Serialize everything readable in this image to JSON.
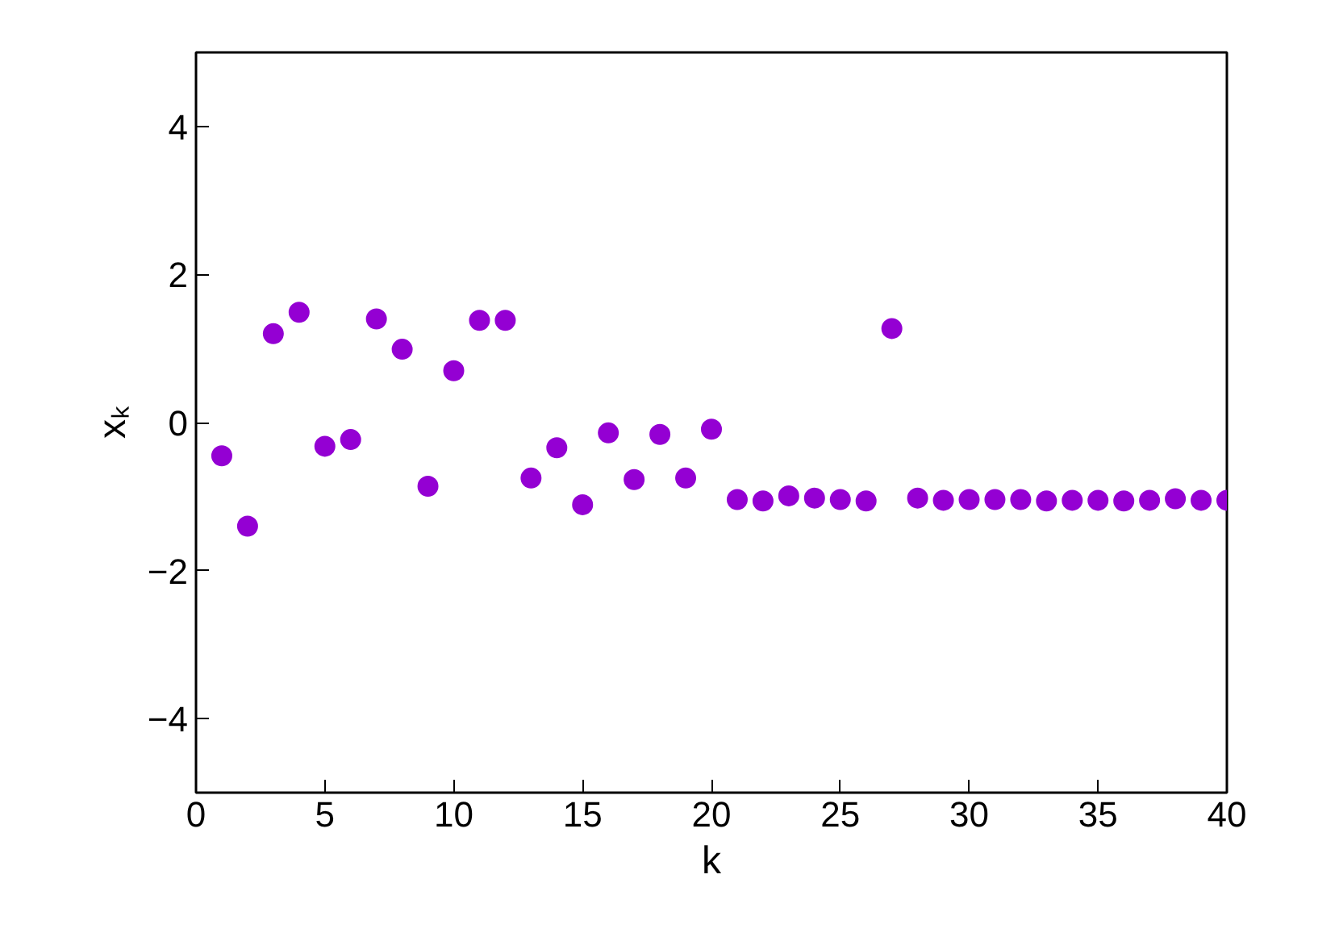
{
  "chart_data": {
    "type": "scatter",
    "xlabel": "k",
    "ylabel": "xₖ",
    "marker": "circle",
    "grid": false,
    "xlim": [
      0,
      40
    ],
    "ylim": [
      -5,
      5
    ],
    "xticks": [
      0,
      5,
      10,
      15,
      20,
      25,
      30,
      35,
      40
    ],
    "yticks": [
      -4,
      -2,
      0,
      2,
      4
    ],
    "x": [
      1,
      2,
      3,
      4,
      5,
      6,
      7,
      8,
      9,
      10,
      11,
      12,
      13,
      14,
      15,
      16,
      17,
      18,
      19,
      20,
      21,
      22,
      23,
      24,
      25,
      26,
      27,
      28,
      29,
      30,
      31,
      32,
      33,
      34,
      35,
      36,
      37,
      38,
      39,
      40
    ],
    "series": [
      {
        "color": "#9400d3",
        "values": [
          -0.45,
          -1.4,
          1.2,
          1.49,
          -0.32,
          -0.23,
          1.4,
          0.99,
          -0.86,
          0.7,
          1.38,
          1.38,
          -0.75,
          -0.34,
          -1.11,
          -0.14,
          -0.77,
          -0.16,
          -0.75,
          -0.09,
          -1.04,
          -1.06,
          -0.99,
          -1.02,
          -1.04,
          -1.06,
          1.27,
          -1.02,
          -1.05,
          -1.04,
          -1.04,
          -1.04,
          -1.06,
          -1.05,
          -1.05,
          -1.06,
          -1.05,
          -1.03,
          -1.05,
          -1.05
        ]
      }
    ]
  }
}
